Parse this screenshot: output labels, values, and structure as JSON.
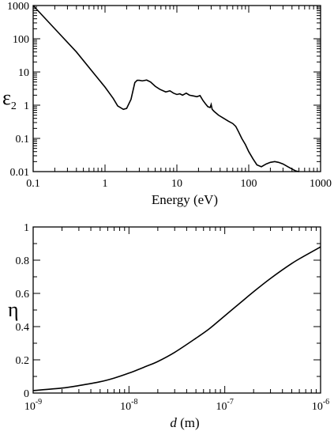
{
  "chart_data": [
    {
      "type": "line",
      "xlabel": "Energy (eV)",
      "ylabel_symbol": "ε",
      "ylabel_subscript": "2",
      "xscale": "log",
      "yscale": "log",
      "xlim": [
        0.1,
        1000
      ],
      "ylim": [
        0.01,
        1000
      ],
      "grid": false,
      "xticks": [
        0.1,
        1,
        10,
        100,
        1000
      ],
      "xtick_labels": [
        "0.1",
        "1",
        "10",
        "100",
        "1000"
      ],
      "yticks": [
        0.01,
        0.1,
        1,
        10,
        100,
        1000
      ],
      "ytick_labels": [
        "0.01",
        "0.1",
        "1",
        "10",
        "100",
        "1000"
      ],
      "series": [
        {
          "x": [
            0.1,
            0.2,
            0.4,
            0.7,
            1.0,
            1.3,
            1.5,
            1.8,
            2.0,
            2.3,
            2.6,
            2.8,
            3.0,
            3.3,
            3.8,
            4.3,
            5.0,
            5.8,
            7.0,
            8.0,
            9.0,
            10.0,
            11.0,
            12.0,
            13.5,
            15.0,
            17.0,
            19.0,
            21.0,
            23.0,
            25.0,
            27.0,
            29.0,
            30.0,
            31.0,
            33.0,
            38.0,
            45.0,
            52.0,
            60.0,
            66.0,
            72.0,
            80.0,
            90.0,
            100.0,
            115.0,
            130.0,
            150.0,
            175.0,
            200.0,
            230.0,
            260.0,
            300.0,
            350.0,
            400.0,
            450.0,
            500.0
          ],
          "y": [
            1000,
            200,
            40,
            9,
            3.5,
            1.6,
            0.95,
            0.75,
            0.8,
            1.5,
            4.8,
            5.6,
            5.6,
            5.4,
            5.7,
            5.0,
            3.7,
            3.0,
            2.5,
            2.7,
            2.3,
            2.1,
            2.2,
            2.0,
            2.3,
            2.0,
            1.9,
            1.8,
            1.95,
            1.4,
            1.1,
            0.9,
            0.85,
            1.05,
            0.75,
            0.65,
            0.5,
            0.4,
            0.33,
            0.28,
            0.23,
            0.16,
            0.1,
            0.065,
            0.04,
            0.024,
            0.016,
            0.014,
            0.017,
            0.019,
            0.02,
            0.019,
            0.017,
            0.014,
            0.012,
            0.0105,
            0.009
          ]
        }
      ]
    },
    {
      "type": "line",
      "xlabel_italic": "d",
      "xlabel_unit": "(m)",
      "ylabel": "η",
      "xscale": "log",
      "yscale": "linear",
      "xlim": [
        1e-09,
        1e-06
      ],
      "ylim": [
        0,
        1
      ],
      "grid": false,
      "xticks": [
        1e-09,
        1e-08,
        1e-07,
        1e-06
      ],
      "xtick_base": [
        "10",
        "10",
        "10",
        "10"
      ],
      "xtick_exp": [
        "-9",
        "-8",
        "-7",
        "-6"
      ],
      "yticks": [
        0,
        0.2,
        0.4,
        0.6,
        0.8,
        1
      ],
      "ytick_labels": [
        "0",
        "0.2",
        "0.4",
        "0.6",
        "0.8",
        "1"
      ],
      "series": [
        {
          "x": [
            1e-09,
            2e-09,
            3e-09,
            5e-09,
            7e-09,
            1e-08,
            1.5e-08,
            2e-08,
            3e-08,
            5e-08,
            7e-08,
            1e-07,
            1.5e-07,
            2e-07,
            3e-07,
            5e-07,
            7e-07,
            1e-06
          ],
          "y": [
            0.015,
            0.03,
            0.045,
            0.068,
            0.09,
            0.12,
            0.16,
            0.19,
            0.245,
            0.33,
            0.39,
            0.465,
            0.55,
            0.61,
            0.69,
            0.78,
            0.83,
            0.88
          ]
        }
      ]
    }
  ]
}
